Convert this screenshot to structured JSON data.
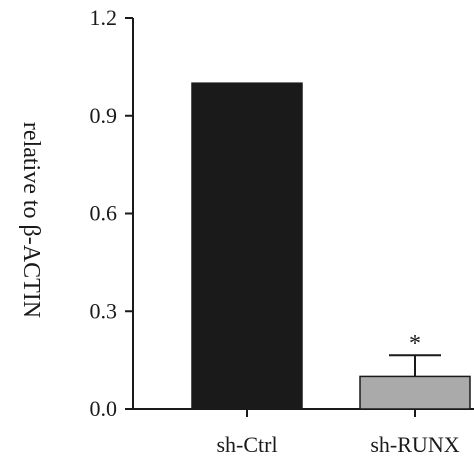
{
  "chart_data": {
    "type": "bar",
    "categories": [
      "sh-Ctrl",
      "sh-RUNX"
    ],
    "values": [
      1.0,
      0.1
    ],
    "errors": [
      null,
      0.065
    ],
    "annotations": [
      null,
      "*"
    ],
    "colors": [
      "#1a1a1a",
      "#aaaaaa"
    ],
    "ylabel": "relative to β-ACTIN",
    "ylim": [
      0,
      1.2
    ],
    "yticks": [
      "0.0",
      "0.3",
      "0.6",
      "0.9",
      "1.2"
    ],
    "grid": false
  }
}
